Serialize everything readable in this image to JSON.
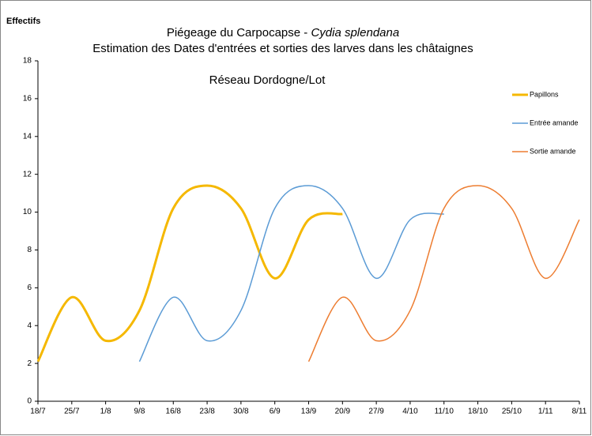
{
  "chart_data": {
    "type": "line",
    "title": "Piégeage du Carpocapse - ",
    "title_species": "Cydia splendana",
    "subtitle": "Estimation des Dates d'entrées et sorties des larves dans les châtaignes",
    "annotation": "Réseau Dordogne/Lot",
    "y_label": "Effectifs",
    "categories": [
      "18/7",
      "25/7",
      "1/8",
      "9/8",
      "16/8",
      "23/8",
      "30/8",
      "6/9",
      "13/9",
      "20/9",
      "27/9",
      "4/10",
      "11/10",
      "18/10",
      "25/10",
      "1/11",
      "8/11"
    ],
    "series": [
      {
        "name": "Papillons",
        "color": "#f5b800",
        "width": 3,
        "values": [
          2.1,
          5.5,
          3.2,
          4.8,
          10.2,
          11.4,
          10.2,
          6.5,
          9.6,
          9.9,
          null,
          null,
          null,
          null,
          null,
          null,
          null
        ]
      },
      {
        "name": "Entrée amande",
        "color": "#5b9bd5",
        "width": 1.5,
        "values": [
          null,
          null,
          null,
          2.1,
          5.5,
          3.2,
          4.8,
          10.2,
          11.4,
          10.2,
          6.5,
          9.6,
          9.9,
          null,
          null,
          null,
          null
        ]
      },
      {
        "name": "Sortie amande",
        "color": "#ed7d31",
        "width": 1.5,
        "values": [
          null,
          null,
          null,
          null,
          null,
          null,
          null,
          null,
          2.1,
          5.5,
          3.2,
          4.8,
          10.2,
          11.4,
          10.2,
          6.5,
          9.6
        ]
      }
    ],
    "ylim": [
      0,
      18
    ],
    "yticks": [
      0,
      2,
      4,
      6,
      8,
      10,
      12,
      14,
      16,
      18
    ],
    "grid": false,
    "legend": "right"
  }
}
